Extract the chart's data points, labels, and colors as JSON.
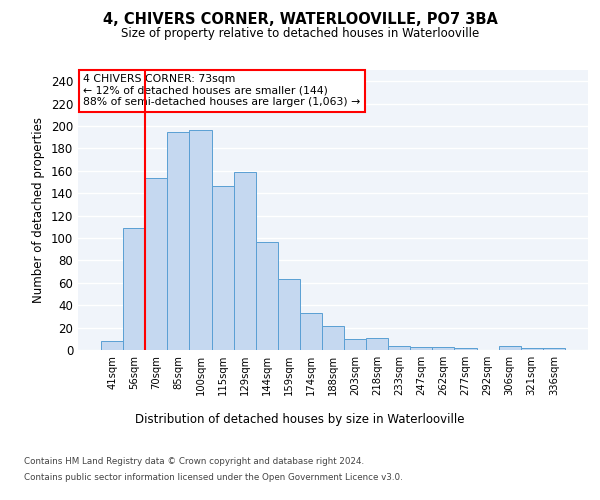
{
  "title": "4, CHIVERS CORNER, WATERLOOVILLE, PO7 3BA",
  "subtitle": "Size of property relative to detached houses in Waterlooville",
  "xlabel": "Distribution of detached houses by size in Waterlooville",
  "ylabel": "Number of detached properties",
  "bar_color": "#c5d8f0",
  "bar_edge_color": "#5a9fd4",
  "background_color": "#f0f4fa",
  "grid_color": "#ffffff",
  "categories": [
    "41sqm",
    "56sqm",
    "70sqm",
    "85sqm",
    "100sqm",
    "115sqm",
    "129sqm",
    "144sqm",
    "159sqm",
    "174sqm",
    "188sqm",
    "203sqm",
    "218sqm",
    "233sqm",
    "247sqm",
    "262sqm",
    "277sqm",
    "292sqm",
    "306sqm",
    "321sqm",
    "336sqm"
  ],
  "values": [
    8,
    109,
    154,
    195,
    196,
    146,
    159,
    96,
    63,
    33,
    21,
    10,
    11,
    4,
    3,
    3,
    2,
    0,
    4,
    2,
    2
  ],
  "redline_bar_index": 1.5,
  "annotation_text": "4 CHIVERS CORNER: 73sqm\n← 12% of detached houses are smaller (144)\n88% of semi-detached houses are larger (1,063) →",
  "ylim": [
    0,
    250
  ],
  "yticks": [
    0,
    20,
    40,
    60,
    80,
    100,
    120,
    140,
    160,
    180,
    200,
    220,
    240
  ],
  "footer_line1": "Contains HM Land Registry data © Crown copyright and database right 2024.",
  "footer_line2": "Contains public sector information licensed under the Open Government Licence v3.0."
}
